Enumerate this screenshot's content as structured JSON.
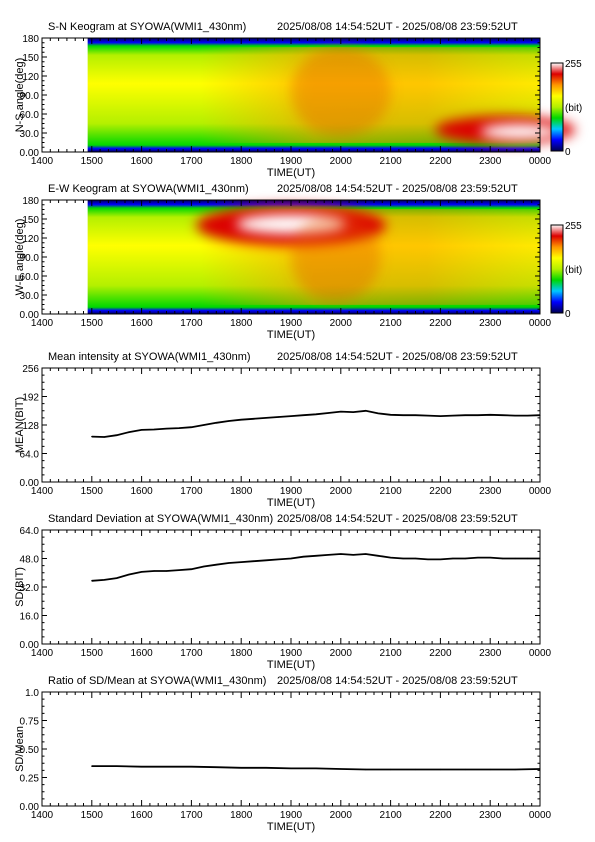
{
  "common": {
    "xlabel": "TIME(UT)",
    "xticks": [
      "1400",
      "1500",
      "1600",
      "1700",
      "1800",
      "1900",
      "2000",
      "2100",
      "2200",
      "2300",
      "0000"
    ],
    "data_start_label": "1500"
  },
  "chart_data": [
    {
      "id": "sn-keogram",
      "type": "heatmap",
      "title": "S-N Keogram at SYOWA(WMI1_430nm)",
      "period": "2025/08/08 14:54:52UT - 2025/08/08 23:59:52UT",
      "xlabel": "TIME(UT)",
      "ylabel": "N-S angle(deg)",
      "yticks": [
        "0.00",
        "30.0",
        "60.0",
        "90.0",
        "120",
        "150",
        "180"
      ],
      "ylim": [
        0,
        180
      ],
      "xlim": [
        "14:00",
        "24:00"
      ],
      "colorbar": {
        "min_label": "0",
        "max_label": "255",
        "unit_label": "(bit)"
      },
      "intensity_features": [
        {
          "time": "23:30",
          "angle_deg": 30,
          "level": 255,
          "note": "bright arc near horizon"
        },
        {
          "time": "20:00",
          "angle_deg": 90,
          "level": 170
        }
      ]
    },
    {
      "id": "ew-keogram",
      "type": "heatmap",
      "title": "E-W Keogram at SYOWA(WMI1_430nm)",
      "period": "2025/08/08 14:54:52UT - 2025/08/08 23:59:52UT",
      "xlabel": "TIME(UT)",
      "ylabel": "W-E angle(deg)",
      "yticks": [
        "0.00",
        "30.0",
        "60.0",
        "90.0",
        "120",
        "150",
        "180"
      ],
      "ylim": [
        0,
        180
      ],
      "xlim": [
        "14:00",
        "24:00"
      ],
      "colorbar": {
        "min_label": "0",
        "max_label": "255",
        "unit_label": "(bit)"
      },
      "intensity_features": [
        {
          "time": "19:00",
          "angle_deg": 145,
          "level": 255,
          "note": "bright patch"
        },
        {
          "time": "20:00",
          "angle_deg": 100,
          "level": 170
        }
      ]
    },
    {
      "id": "mean-intensity",
      "type": "line",
      "title": "Mean intensity at SYOWA(WMI1_430nm)",
      "period": "2025/08/08 14:54:52UT - 2025/08/08 23:59:52UT",
      "xlabel": "TIME(UT)",
      "ylabel": "MEAN(BIT)",
      "yticks": [
        "0.00",
        "64.0",
        "128",
        "192",
        "256"
      ],
      "ylim": [
        0,
        256
      ],
      "x_hours": [
        15.0,
        15.25,
        15.5,
        15.75,
        16.0,
        16.25,
        16.5,
        16.75,
        17.0,
        17.25,
        17.5,
        17.75,
        18.0,
        18.25,
        18.5,
        18.75,
        19.0,
        19.25,
        19.5,
        19.75,
        20.0,
        20.25,
        20.5,
        20.75,
        21.0,
        21.25,
        21.5,
        21.75,
        22.0,
        22.25,
        22.5,
        22.75,
        23.0,
        23.25,
        23.5,
        23.75,
        24.0
      ],
      "values": [
        102,
        101,
        105,
        112,
        117,
        118,
        120,
        121,
        123,
        128,
        133,
        137,
        140,
        142,
        144,
        146,
        148,
        150,
        152,
        155,
        158,
        157,
        160,
        154,
        151,
        150,
        150,
        149,
        148,
        149,
        150,
        150,
        151,
        150,
        149,
        149,
        150
      ]
    },
    {
      "id": "std-dev",
      "type": "line",
      "title": "Standard Deviation at SYOWA(WMI1_430nm)",
      "period": "2025/08/08 14:54:52UT - 2025/08/08 23:59:52UT",
      "xlabel": "TIME(UT)",
      "ylabel": "SD(BIT)",
      "yticks": [
        "0.00",
        "16.0",
        "32.0",
        "48.0",
        "64.0"
      ],
      "ylim": [
        0,
        64
      ],
      "x_hours": [
        15.0,
        15.25,
        15.5,
        15.75,
        16.0,
        16.25,
        16.5,
        16.75,
        17.0,
        17.25,
        17.5,
        17.75,
        18.0,
        18.25,
        18.5,
        18.75,
        19.0,
        19.25,
        19.5,
        19.75,
        20.0,
        20.25,
        20.5,
        20.75,
        21.0,
        21.25,
        21.5,
        21.75,
        22.0,
        22.25,
        22.5,
        22.75,
        23.0,
        23.25,
        23.5,
        23.75,
        24.0
      ],
      "values": [
        35.5,
        36,
        37,
        39,
        40.5,
        41,
        41,
        41.5,
        42,
        43.5,
        44.5,
        45.5,
        46,
        46.5,
        47,
        47.5,
        48,
        49,
        49.5,
        50,
        50.5,
        50,
        50.5,
        49.5,
        48.5,
        48,
        48,
        47.5,
        47.5,
        48,
        48,
        48.5,
        48.5,
        48,
        48,
        48,
        48
      ]
    },
    {
      "id": "sd-mean-ratio",
      "type": "line",
      "title": "Ratio of SD/Mean at SYOWA(WMI1_430nm)",
      "period": "2025/08/08 14:54:52UT - 2025/08/08 23:59:52UT",
      "xlabel": "TIME(UT)",
      "ylabel": "SD/Mean",
      "yticks": [
        "0.00",
        "0.25",
        "0.50",
        "0.75",
        "1.0"
      ],
      "ylim": [
        0,
        1
      ],
      "x_hours": [
        15.0,
        15.5,
        16.0,
        16.5,
        17.0,
        17.5,
        18.0,
        18.5,
        19.0,
        19.5,
        20.0,
        20.5,
        21.0,
        21.5,
        22.0,
        22.5,
        23.0,
        23.5,
        24.0
      ],
      "values": [
        0.35,
        0.35,
        0.345,
        0.345,
        0.345,
        0.34,
        0.335,
        0.335,
        0.33,
        0.33,
        0.325,
        0.32,
        0.32,
        0.32,
        0.32,
        0.32,
        0.32,
        0.32,
        0.325
      ]
    }
  ],
  "palette": {
    "line": "#000000",
    "heat_stops": [
      "#000050",
      "#0000ff",
      "#00c8ff",
      "#00d700",
      "#b4f000",
      "#ffff00",
      "#ff9600",
      "#dc0000",
      "#ffffff"
    ]
  }
}
